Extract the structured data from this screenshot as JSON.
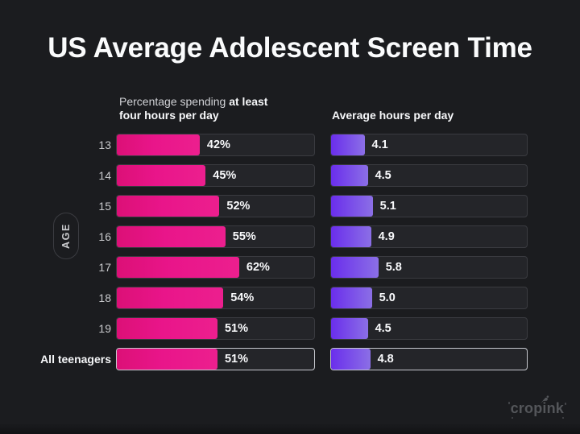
{
  "title": "US Average Adolescent Screen Time",
  "axis_label": "AGE",
  "logo_text": "cropink",
  "left_subtitle": {
    "regular": "Percentage spending ",
    "bold": "at least four hours per day"
  },
  "right_subtitle": "Average hours per day",
  "colors": {
    "background": "#1b1c1f",
    "track": "#242529",
    "track_border": "#3a3b40",
    "highlight_border": "#c6c8ce",
    "pink_bar": "#e9158a",
    "purple_bar_start": "#6a2eec",
    "purple_bar_end": "#8b6fe6",
    "title_text": "#fafbfc",
    "muted_text": "#c8c9cc"
  },
  "chart_data": [
    {
      "type": "bar",
      "orientation": "horizontal",
      "title": "Percentage spending at least four hours per day",
      "categories": [
        "13",
        "14",
        "15",
        "16",
        "17",
        "18",
        "19",
        "All teenagers"
      ],
      "values": [
        42,
        45,
        52,
        55,
        62,
        54,
        51,
        51
      ],
      "labels": [
        "42%",
        "45%",
        "52%",
        "55%",
        "62%",
        "54%",
        "51%",
        "51%"
      ],
      "unit": "%",
      "xlim": [
        0,
        100
      ],
      "ylabel": "AGE",
      "grid": false,
      "bar_color": "#e9158a",
      "highlight_category": "All teenagers"
    },
    {
      "type": "bar",
      "orientation": "horizontal",
      "title": "Average hours per day",
      "categories": [
        "13",
        "14",
        "15",
        "16",
        "17",
        "18",
        "19",
        "All teenagers"
      ],
      "values": [
        4.1,
        4.5,
        5.1,
        4.9,
        5.8,
        5.0,
        4.5,
        4.8
      ],
      "labels": [
        "4.1",
        "4.5",
        "5.1",
        "4.9",
        "5.8",
        "5.0",
        "4.5",
        "4.8"
      ],
      "unit": "hours",
      "xlim": [
        0,
        24
      ],
      "ylabel": "AGE",
      "grid": false,
      "bar_color": "#6a2eec",
      "highlight_category": "All teenagers"
    }
  ]
}
